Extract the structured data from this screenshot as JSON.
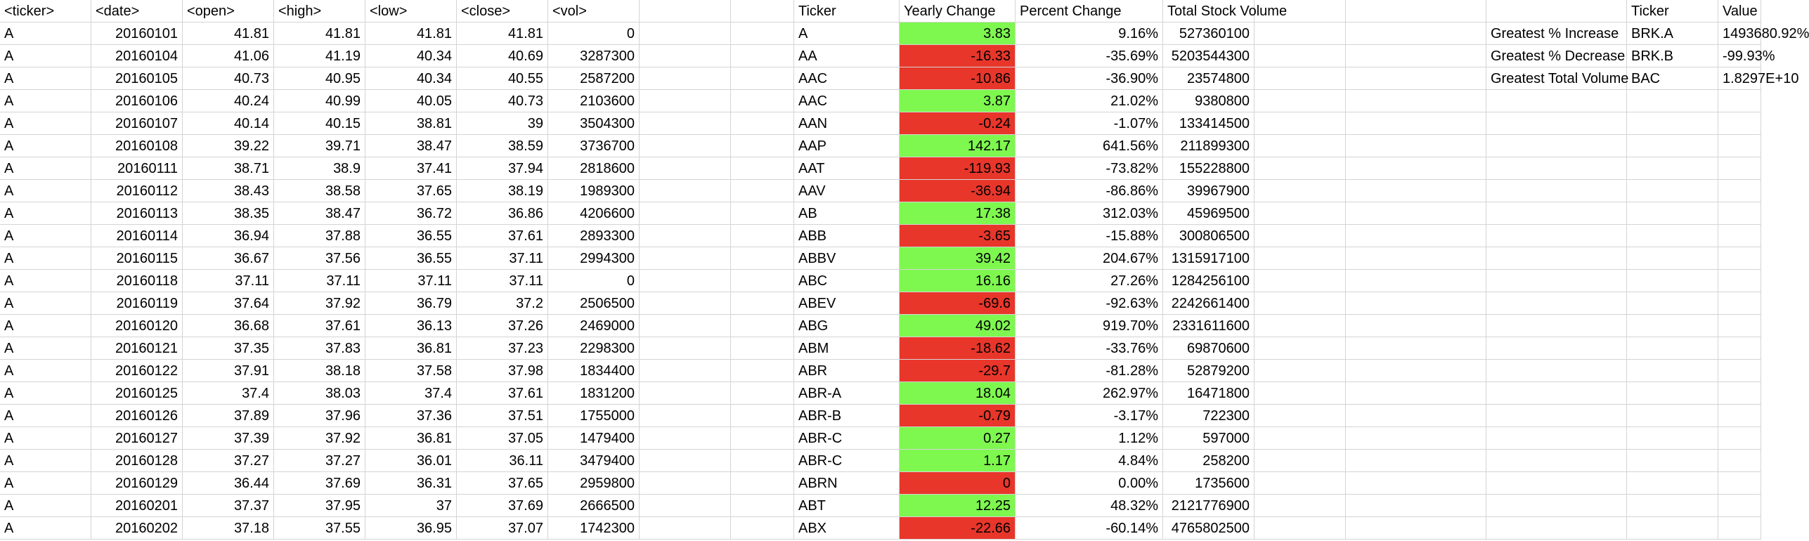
{
  "colors": {
    "positive_fill": "#7ef74f",
    "negative_fill": "#e8362b",
    "gridline": "#d4d4d4"
  },
  "raw_headers": [
    "<ticker>",
    "<date>",
    "<open>",
    "<high>",
    "<low>",
    "<close>",
    "<vol>"
  ],
  "raw_rows": [
    [
      "A",
      "20160101",
      "41.81",
      "41.81",
      "41.81",
      "41.81",
      "0"
    ],
    [
      "A",
      "20160104",
      "41.06",
      "41.19",
      "40.34",
      "40.69",
      "3287300"
    ],
    [
      "A",
      "20160105",
      "40.73",
      "40.95",
      "40.34",
      "40.55",
      "2587200"
    ],
    [
      "A",
      "20160106",
      "40.24",
      "40.99",
      "40.05",
      "40.73",
      "2103600"
    ],
    [
      "A",
      "20160107",
      "40.14",
      "40.15",
      "38.81",
      "39",
      "3504300"
    ],
    [
      "A",
      "20160108",
      "39.22",
      "39.71",
      "38.47",
      "38.59",
      "3736700"
    ],
    [
      "A",
      "20160111",
      "38.71",
      "38.9",
      "37.41",
      "37.94",
      "2818600"
    ],
    [
      "A",
      "20160112",
      "38.43",
      "38.58",
      "37.65",
      "38.19",
      "1989300"
    ],
    [
      "A",
      "20160113",
      "38.35",
      "38.47",
      "36.72",
      "36.86",
      "4206600"
    ],
    [
      "A",
      "20160114",
      "36.94",
      "37.88",
      "36.55",
      "37.61",
      "2893300"
    ],
    [
      "A",
      "20160115",
      "36.67",
      "37.56",
      "36.55",
      "37.11",
      "2994300"
    ],
    [
      "A",
      "20160118",
      "37.11",
      "37.11",
      "37.11",
      "37.11",
      "0"
    ],
    [
      "A",
      "20160119",
      "37.64",
      "37.92",
      "36.79",
      "37.2",
      "2506500"
    ],
    [
      "A",
      "20160120",
      "36.68",
      "37.61",
      "36.13",
      "37.26",
      "2469000"
    ],
    [
      "A",
      "20160121",
      "37.35",
      "37.83",
      "36.81",
      "37.23",
      "2298300"
    ],
    [
      "A",
      "20160122",
      "37.91",
      "38.18",
      "37.58",
      "37.98",
      "1834400"
    ],
    [
      "A",
      "20160125",
      "37.4",
      "38.03",
      "37.4",
      "37.61",
      "1831200"
    ],
    [
      "A",
      "20160126",
      "37.89",
      "37.96",
      "37.36",
      "37.51",
      "1755000"
    ],
    [
      "A",
      "20160127",
      "37.39",
      "37.92",
      "36.81",
      "37.05",
      "1479400"
    ],
    [
      "A",
      "20160128",
      "37.27",
      "37.27",
      "36.01",
      "36.11",
      "3479400"
    ],
    [
      "A",
      "20160129",
      "36.44",
      "37.69",
      "36.31",
      "37.65",
      "2959800"
    ],
    [
      "A",
      "20160201",
      "37.37",
      "37.95",
      "37",
      "37.69",
      "2666500"
    ],
    [
      "A",
      "20160202",
      "37.18",
      "37.55",
      "36.95",
      "37.07",
      "1742300"
    ]
  ],
  "summary_headers": [
    "Ticker",
    "Yearly Change",
    "Percent Change",
    "Total Stock Volume"
  ],
  "summary_rows": [
    {
      "ticker": "A",
      "yearly_change": "3.83",
      "percent_change": "9.16%",
      "total_volume": "527360100",
      "sign": "pos"
    },
    {
      "ticker": "AA",
      "yearly_change": "-16.33",
      "percent_change": "-35.69%",
      "total_volume": "5203544300",
      "sign": "neg"
    },
    {
      "ticker": "AAC",
      "yearly_change": "-10.86",
      "percent_change": "-36.90%",
      "total_volume": "23574800",
      "sign": "neg"
    },
    {
      "ticker": "AAC",
      "yearly_change": "3.87",
      "percent_change": "21.02%",
      "total_volume": "9380800",
      "sign": "pos"
    },
    {
      "ticker": "AAN",
      "yearly_change": "-0.24",
      "percent_change": "-1.07%",
      "total_volume": "133414500",
      "sign": "neg"
    },
    {
      "ticker": "AAP",
      "yearly_change": "142.17",
      "percent_change": "641.56%",
      "total_volume": "211899300",
      "sign": "pos"
    },
    {
      "ticker": "AAT",
      "yearly_change": "-119.93",
      "percent_change": "-73.82%",
      "total_volume": "155228800",
      "sign": "neg"
    },
    {
      "ticker": "AAV",
      "yearly_change": "-36.94",
      "percent_change": "-86.86%",
      "total_volume": "39967900",
      "sign": "neg"
    },
    {
      "ticker": "AB",
      "yearly_change": "17.38",
      "percent_change": "312.03%",
      "total_volume": "45969500",
      "sign": "pos"
    },
    {
      "ticker": "ABB",
      "yearly_change": "-3.65",
      "percent_change": "-15.88%",
      "total_volume": "300806500",
      "sign": "neg"
    },
    {
      "ticker": "ABBV",
      "yearly_change": "39.42",
      "percent_change": "204.67%",
      "total_volume": "1315917100",
      "sign": "pos"
    },
    {
      "ticker": "ABC",
      "yearly_change": "16.16",
      "percent_change": "27.26%",
      "total_volume": "1284256100",
      "sign": "pos"
    },
    {
      "ticker": "ABEV",
      "yearly_change": "-69.6",
      "percent_change": "-92.63%",
      "total_volume": "2242661400",
      "sign": "neg"
    },
    {
      "ticker": "ABG",
      "yearly_change": "49.02",
      "percent_change": "919.70%",
      "total_volume": "2331611600",
      "sign": "pos"
    },
    {
      "ticker": "ABM",
      "yearly_change": "-18.62",
      "percent_change": "-33.76%",
      "total_volume": "69870600",
      "sign": "neg"
    },
    {
      "ticker": "ABR",
      "yearly_change": "-29.7",
      "percent_change": "-81.28%",
      "total_volume": "52879200",
      "sign": "neg"
    },
    {
      "ticker": "ABR-A",
      "yearly_change": "18.04",
      "percent_change": "262.97%",
      "total_volume": "16471800",
      "sign": "pos"
    },
    {
      "ticker": "ABR-B",
      "yearly_change": "-0.79",
      "percent_change": "-3.17%",
      "total_volume": "722300",
      "sign": "neg"
    },
    {
      "ticker": "ABR-C",
      "yearly_change": "0.27",
      "percent_change": "1.12%",
      "total_volume": "597000",
      "sign": "pos"
    },
    {
      "ticker": "ABR-C",
      "yearly_change": "1.17",
      "percent_change": "4.84%",
      "total_volume": "258200",
      "sign": "pos"
    },
    {
      "ticker": "ABRN",
      "yearly_change": "0",
      "percent_change": "0.00%",
      "total_volume": "1735600",
      "sign": "neg"
    },
    {
      "ticker": "ABT",
      "yearly_change": "12.25",
      "percent_change": "48.32%",
      "total_volume": "2121776900",
      "sign": "pos"
    },
    {
      "ticker": "ABX",
      "yearly_change": "-22.66",
      "percent_change": "-60.14%",
      "total_volume": "4765802500",
      "sign": "neg"
    }
  ],
  "greatest_headers": [
    "",
    "Ticker",
    "Value"
  ],
  "greatest_rows": [
    {
      "label": "Greatest % Increase",
      "ticker": "BRK.A",
      "value": "1493680.92%"
    },
    {
      "label": "Greatest % Decrease",
      "ticker": "BRK.B",
      "value": "-99.93%"
    },
    {
      "label": "Greatest Total Volume",
      "ticker": "BAC",
      "value": "1.8297E+10"
    }
  ]
}
